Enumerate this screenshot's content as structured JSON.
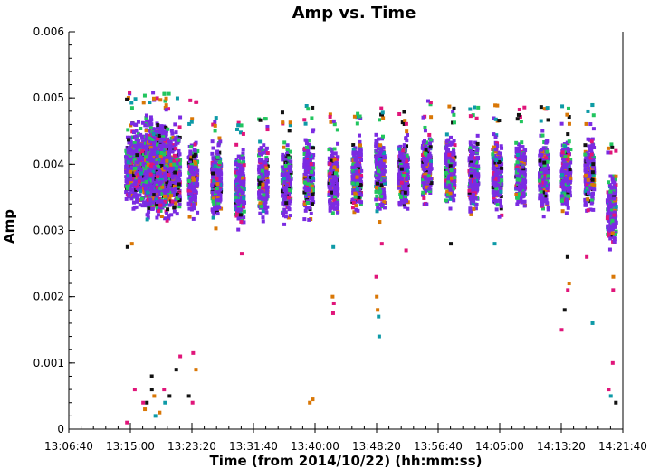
{
  "chart_data": {
    "type": "scatter",
    "title": "Amp vs. Time",
    "xlabel": "Time (from 2014/10/22) (hh:mm:ss)",
    "ylabel": "Amp",
    "xlim": [
      "13:06:40",
      "14:21:40"
    ],
    "ylim": [
      0,
      0.006
    ],
    "grid": false,
    "x_ticks": [
      "13:06:40",
      "13:15:00",
      "13:23:20",
      "13:31:40",
      "13:40:00",
      "13:48:20",
      "13:56:40",
      "14:05:00",
      "14:13:20",
      "14:21:40"
    ],
    "y_ticks": [
      "0",
      "0.001",
      "0.002",
      "0.003",
      "0.004",
      "0.005",
      "0.006"
    ],
    "colors": [
      "#7b2be2",
      "#22c55e",
      "#111111",
      "#e0157a",
      "#d97706",
      "#0e9aa7"
    ],
    "scans": [
      {
        "time": "13:15:00",
        "low": 0.0031,
        "high": 0.0048,
        "max": 0.00525,
        "outliers": [
          0.00275,
          0.0028,
          0.0006,
          0.0001
        ]
      },
      {
        "time": "13:17:10",
        "low": 0.003,
        "high": 0.0049,
        "max": 0.0052,
        "outliers": [
          0.0006,
          0.0004,
          0.0003,
          0.0002
        ]
      },
      {
        "time": "13:18:40",
        "low": 0.003,
        "high": 0.0049,
        "max": 0.0051,
        "outliers": [
          0.0008,
          0.0005,
          0.0004,
          0.00025
        ]
      },
      {
        "time": "13:20:10",
        "low": 0.003,
        "high": 0.0048,
        "max": 0.005,
        "outliers": [
          0.0011,
          0.0009,
          0.0006,
          0.0005,
          0.0004
        ]
      },
      {
        "time": "13:23:30",
        "low": 0.003,
        "high": 0.0046,
        "max": 0.005,
        "outliers": [
          0.00115,
          0.0009,
          0.0005,
          0.0004
        ]
      },
      {
        "time": "13:26:40",
        "low": 0.003,
        "high": 0.0045,
        "max": 0.0048,
        "outliers": []
      },
      {
        "time": "13:29:50",
        "low": 0.0029,
        "high": 0.0044,
        "max": 0.0047,
        "outliers": [
          0.00265
        ]
      },
      {
        "time": "13:33:00",
        "low": 0.003,
        "high": 0.0045,
        "max": 0.0047,
        "outliers": []
      },
      {
        "time": "13:36:10",
        "low": 0.003,
        "high": 0.0045,
        "max": 0.0048,
        "outliers": []
      },
      {
        "time": "13:39:10",
        "low": 0.003,
        "high": 0.0046,
        "max": 0.0049,
        "outliers": [
          0.00045,
          0.0004
        ]
      },
      {
        "time": "13:42:30",
        "low": 0.003,
        "high": 0.0045,
        "max": 0.0048,
        "outliers": [
          0.00275,
          0.002,
          0.0019,
          0.00175
        ]
      },
      {
        "time": "13:45:40",
        "low": 0.0031,
        "high": 0.0046,
        "max": 0.0048,
        "outliers": []
      },
      {
        "time": "13:48:50",
        "low": 0.0031,
        "high": 0.0046,
        "max": 0.0049,
        "outliers": [
          0.0028,
          0.0023,
          0.002,
          0.0018,
          0.0017,
          0.0014
        ]
      },
      {
        "time": "13:52:00",
        "low": 0.0031,
        "high": 0.0046,
        "max": 0.0049,
        "outliers": [
          0.0027
        ]
      },
      {
        "time": "13:55:10",
        "low": 0.0032,
        "high": 0.0047,
        "max": 0.005,
        "outliers": []
      },
      {
        "time": "13:58:20",
        "low": 0.0032,
        "high": 0.0046,
        "max": 0.0049,
        "outliers": [
          0.0028
        ]
      },
      {
        "time": "14:01:30",
        "low": 0.0031,
        "high": 0.0046,
        "max": 0.0049,
        "outliers": []
      },
      {
        "time": "14:04:40",
        "low": 0.0031,
        "high": 0.0046,
        "max": 0.0049,
        "outliers": [
          0.0028
        ]
      },
      {
        "time": "14:07:50",
        "low": 0.0031,
        "high": 0.0046,
        "max": 0.0049,
        "outliers": []
      },
      {
        "time": "14:11:00",
        "low": 0.0031,
        "high": 0.0046,
        "max": 0.0049,
        "outliers": []
      },
      {
        "time": "14:14:00",
        "low": 0.0031,
        "high": 0.0046,
        "max": 0.0049,
        "outliers": [
          0.0026,
          0.0022,
          0.0021,
          0.0018,
          0.0015
        ]
      },
      {
        "time": "14:17:10",
        "low": 0.0031,
        "high": 0.0046,
        "max": 0.0049,
        "outliers": [
          0.0026,
          0.0016
        ]
      },
      {
        "time": "14:20:10",
        "low": 0.0026,
        "high": 0.0041,
        "max": 0.0043,
        "outliers": [
          0.0023,
          0.0021,
          0.001,
          0.0006,
          0.0005,
          0.0004
        ]
      }
    ]
  }
}
